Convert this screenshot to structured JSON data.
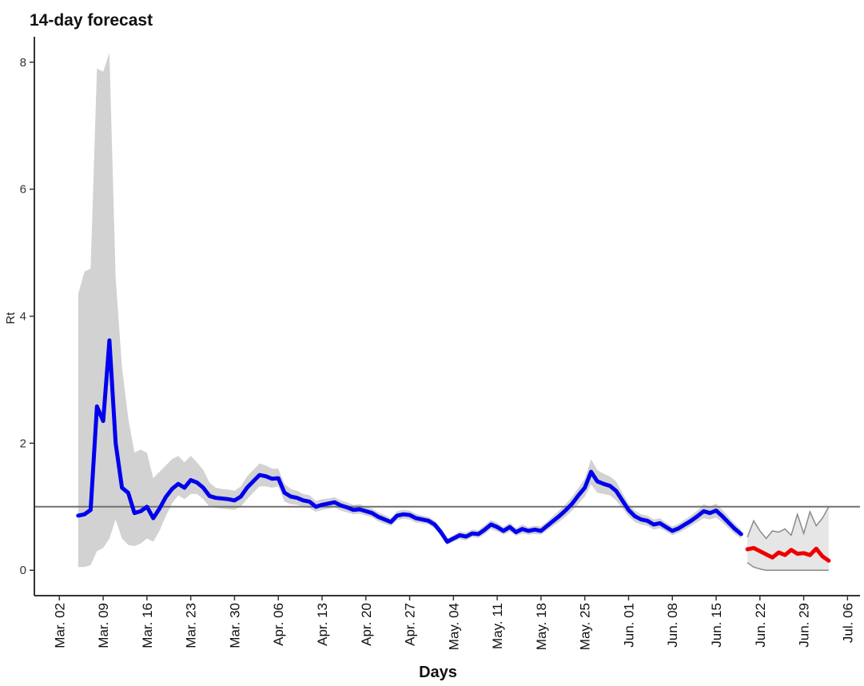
{
  "chart_data": {
    "type": "line",
    "title": "14-day forecast",
    "xlabel": "Days",
    "ylabel": "Rt",
    "ylim": [
      -0.4,
      8.4
    ],
    "yticks": [
      0,
      2,
      4,
      6,
      8
    ],
    "xlim": [
      "2020-02-27",
      "2020-07-08"
    ],
    "xticks": [
      {
        "date": "2020-03-02",
        "label": "Mar. 02"
      },
      {
        "date": "2020-03-09",
        "label": "Mar. 09"
      },
      {
        "date": "2020-03-16",
        "label": "Mar. 16"
      },
      {
        "date": "2020-03-23",
        "label": "Mar. 23"
      },
      {
        "date": "2020-03-30",
        "label": "Mar. 30"
      },
      {
        "date": "2020-04-06",
        "label": "Apr. 06"
      },
      {
        "date": "2020-04-13",
        "label": "Apr. 13"
      },
      {
        "date": "2020-04-20",
        "label": "Apr. 20"
      },
      {
        "date": "2020-04-27",
        "label": "Apr. 27"
      },
      {
        "date": "2020-05-04",
        "label": "May. 04"
      },
      {
        "date": "2020-05-11",
        "label": "May. 11"
      },
      {
        "date": "2020-05-18",
        "label": "May. 18"
      },
      {
        "date": "2020-05-25",
        "label": "May. 25"
      },
      {
        "date": "2020-06-01",
        "label": "Jun. 01"
      },
      {
        "date": "2020-06-08",
        "label": "Jun. 08"
      },
      {
        "date": "2020-06-15",
        "label": "Jun. 15"
      },
      {
        "date": "2020-06-22",
        "label": "Jun. 22"
      },
      {
        "date": "2020-06-29",
        "label": "Jun. 29"
      },
      {
        "date": "2020-07-06",
        "label": "Jul. 06"
      }
    ],
    "reference_line": {
      "y": 1.0,
      "color": "#707070"
    },
    "grid": false,
    "legend": "none",
    "series": [
      {
        "color": "#0000ee",
        "band_color": "#d2d2d2",
        "x": [
          "2020-03-05",
          "2020-03-06",
          "2020-03-07",
          "2020-03-08",
          "2020-03-09",
          "2020-03-10",
          "2020-03-11",
          "2020-03-12",
          "2020-03-13",
          "2020-03-14",
          "2020-03-15",
          "2020-03-16",
          "2020-03-17",
          "2020-03-18",
          "2020-03-19",
          "2020-03-20",
          "2020-03-21",
          "2020-03-22",
          "2020-03-23",
          "2020-03-24",
          "2020-03-25",
          "2020-03-26",
          "2020-03-27",
          "2020-03-28",
          "2020-03-29",
          "2020-03-30",
          "2020-03-31",
          "2020-04-01",
          "2020-04-02",
          "2020-04-03",
          "2020-04-04",
          "2020-04-05",
          "2020-04-06",
          "2020-04-07",
          "2020-04-08",
          "2020-04-09",
          "2020-04-10",
          "2020-04-11",
          "2020-04-12",
          "2020-04-13",
          "2020-04-14",
          "2020-04-15",
          "2020-04-16",
          "2020-04-17",
          "2020-04-18",
          "2020-04-19",
          "2020-04-20",
          "2020-04-21",
          "2020-04-22",
          "2020-04-23",
          "2020-04-24",
          "2020-04-25",
          "2020-04-26",
          "2020-04-27",
          "2020-04-28",
          "2020-04-29",
          "2020-04-30",
          "2020-05-01",
          "2020-05-02",
          "2020-05-03",
          "2020-05-04",
          "2020-05-05",
          "2020-05-06",
          "2020-05-07",
          "2020-05-08",
          "2020-05-09",
          "2020-05-10",
          "2020-05-11",
          "2020-05-12",
          "2020-05-13",
          "2020-05-14",
          "2020-05-15",
          "2020-05-16",
          "2020-05-17",
          "2020-05-18",
          "2020-05-19",
          "2020-05-20",
          "2020-05-21",
          "2020-05-22",
          "2020-05-23",
          "2020-05-24",
          "2020-05-25",
          "2020-05-26",
          "2020-05-27",
          "2020-05-28",
          "2020-05-29",
          "2020-05-30",
          "2020-05-31",
          "2020-06-01",
          "2020-06-02",
          "2020-06-03",
          "2020-06-04",
          "2020-06-05",
          "2020-06-06",
          "2020-06-07",
          "2020-06-08",
          "2020-06-09",
          "2020-06-10",
          "2020-06-11",
          "2020-06-12",
          "2020-06-13",
          "2020-06-14",
          "2020-06-15",
          "2020-06-16",
          "2020-06-17",
          "2020-06-18",
          "2020-06-19"
        ],
        "y": [
          0.86,
          0.88,
          0.95,
          2.58,
          2.35,
          3.62,
          2.0,
          1.3,
          1.22,
          0.9,
          0.93,
          1.0,
          0.82,
          0.97,
          1.15,
          1.28,
          1.36,
          1.3,
          1.42,
          1.38,
          1.3,
          1.17,
          1.14,
          1.13,
          1.12,
          1.1,
          1.16,
          1.3,
          1.4,
          1.5,
          1.48,
          1.44,
          1.45,
          1.22,
          1.16,
          1.14,
          1.1,
          1.08,
          1.0,
          1.03,
          1.05,
          1.07,
          1.02,
          0.99,
          0.95,
          0.96,
          0.93,
          0.9,
          0.84,
          0.8,
          0.76,
          0.86,
          0.88,
          0.87,
          0.82,
          0.8,
          0.78,
          0.72,
          0.6,
          0.45,
          0.5,
          0.55,
          0.53,
          0.58,
          0.57,
          0.64,
          0.72,
          0.68,
          0.62,
          0.68,
          0.6,
          0.65,
          0.62,
          0.64,
          0.62,
          0.7,
          0.78,
          0.86,
          0.95,
          1.05,
          1.18,
          1.3,
          1.55,
          1.4,
          1.36,
          1.33,
          1.25,
          1.1,
          0.95,
          0.85,
          0.8,
          0.78,
          0.72,
          0.74,
          0.68,
          0.62,
          0.66,
          0.72,
          0.78,
          0.85,
          0.93,
          0.9,
          0.94,
          0.85,
          0.75,
          0.65,
          0.57
        ],
        "lower": [
          0.05,
          0.05,
          0.08,
          0.3,
          0.35,
          0.5,
          0.8,
          0.5,
          0.4,
          0.38,
          0.42,
          0.5,
          0.45,
          0.62,
          0.85,
          1.05,
          1.18,
          1.12,
          1.2,
          1.2,
          1.12,
          1.0,
          0.98,
          0.97,
          0.96,
          0.95,
          1.0,
          1.12,
          1.22,
          1.32,
          1.32,
          1.3,
          1.32,
          1.08,
          1.04,
          1.03,
          1.0,
          0.98,
          0.92,
          0.95,
          0.97,
          0.99,
          0.94,
          0.91,
          0.88,
          0.89,
          0.86,
          0.83,
          0.77,
          0.73,
          0.7,
          0.79,
          0.81,
          0.8,
          0.75,
          0.74,
          0.72,
          0.66,
          0.54,
          0.4,
          0.45,
          0.49,
          0.47,
          0.52,
          0.51,
          0.57,
          0.65,
          0.61,
          0.56,
          0.61,
          0.54,
          0.58,
          0.56,
          0.57,
          0.56,
          0.63,
          0.7,
          0.77,
          0.85,
          0.94,
          1.05,
          1.16,
          1.35,
          1.22,
          1.2,
          1.18,
          1.1,
          0.98,
          0.85,
          0.76,
          0.72,
          0.7,
          0.64,
          0.66,
          0.61,
          0.55,
          0.59,
          0.64,
          0.7,
          0.76,
          0.82,
          0.8,
          0.83,
          0.75,
          0.66,
          0.57,
          0.5
        ],
        "upper": [
          4.35,
          4.7,
          4.75,
          7.9,
          7.85,
          8.15,
          4.6,
          3.2,
          2.4,
          1.85,
          1.9,
          1.85,
          1.45,
          1.55,
          1.65,
          1.75,
          1.8,
          1.7,
          1.8,
          1.7,
          1.58,
          1.38,
          1.3,
          1.28,
          1.27,
          1.25,
          1.32,
          1.48,
          1.58,
          1.68,
          1.65,
          1.6,
          1.6,
          1.36,
          1.28,
          1.25,
          1.2,
          1.18,
          1.09,
          1.12,
          1.13,
          1.15,
          1.1,
          1.07,
          1.03,
          1.04,
          1.0,
          0.97,
          0.91,
          0.87,
          0.82,
          0.93,
          0.95,
          0.94,
          0.89,
          0.86,
          0.84,
          0.78,
          0.66,
          0.5,
          0.55,
          0.61,
          0.59,
          0.64,
          0.63,
          0.71,
          0.79,
          0.75,
          0.68,
          0.75,
          0.66,
          0.72,
          0.68,
          0.7,
          0.69,
          0.77,
          0.86,
          0.95,
          1.05,
          1.16,
          1.3,
          1.44,
          1.75,
          1.58,
          1.52,
          1.48,
          1.4,
          1.22,
          1.05,
          0.94,
          0.88,
          0.86,
          0.8,
          0.82,
          0.75,
          0.69,
          0.73,
          0.8,
          0.86,
          0.94,
          1.04,
          1.0,
          1.05,
          0.95,
          0.84,
          0.73,
          0.64
        ]
      },
      {
        "color": "#ee0000",
        "band_color": "#e6e6e6",
        "band_edge_color": "#8a8a8a",
        "x": [
          "2020-06-20",
          "2020-06-21",
          "2020-06-22",
          "2020-06-23",
          "2020-06-24",
          "2020-06-25",
          "2020-06-26",
          "2020-06-27",
          "2020-06-28",
          "2020-06-29",
          "2020-06-30",
          "2020-07-01",
          "2020-07-02",
          "2020-07-03"
        ],
        "y": [
          0.33,
          0.35,
          0.3,
          0.25,
          0.2,
          0.28,
          0.24,
          0.32,
          0.26,
          0.27,
          0.24,
          0.34,
          0.22,
          0.15
        ],
        "lower": [
          0.12,
          0.05,
          0.02,
          0.0,
          0.0,
          0.0,
          0.0,
          0.0,
          0.0,
          0.0,
          0.0,
          0.0,
          0.0,
          0.0
        ],
        "upper": [
          0.52,
          0.78,
          0.62,
          0.5,
          0.62,
          0.6,
          0.65,
          0.55,
          0.88,
          0.58,
          0.92,
          0.7,
          0.82,
          1.0
        ]
      }
    ]
  }
}
